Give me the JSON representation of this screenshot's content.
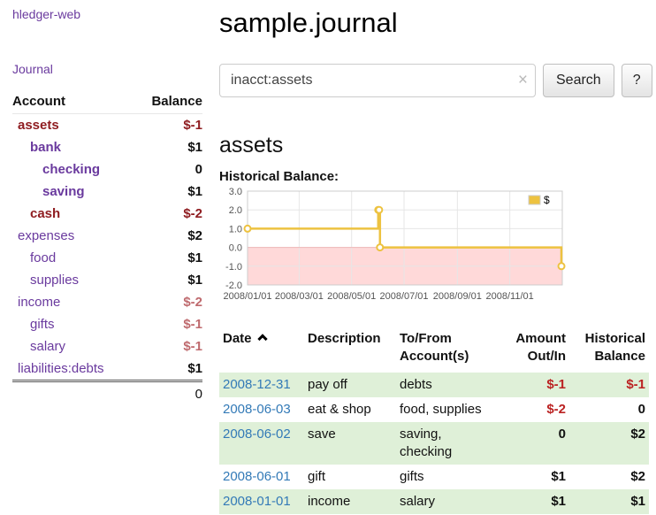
{
  "colors": {
    "link_purple": "#6a3a9e",
    "negative_dark": "#8f1d21",
    "negative_rose": "#bf6a6e",
    "negative_red": "#bb2222",
    "row_green": "#dff0d8",
    "date_blue": "#337ab7",
    "chart_line": "#edc240",
    "negative_region": "#ffd9d9"
  },
  "sidebar": {
    "app_link": "hledger-web",
    "journal_link": "Journal",
    "table": {
      "account_header": "Account",
      "balance_header": "Balance",
      "rows": [
        {
          "name": "assets",
          "balance": "$-1"
        },
        {
          "name": "bank",
          "balance": "$1"
        },
        {
          "name": "checking",
          "balance": "0"
        },
        {
          "name": "saving",
          "balance": "$1"
        },
        {
          "name": "cash",
          "balance": "$-2"
        },
        {
          "name": "expenses",
          "balance": "$2"
        },
        {
          "name": "food",
          "balance": "$1"
        },
        {
          "name": "supplies",
          "balance": "$1"
        },
        {
          "name": "income",
          "balance": "$-2"
        },
        {
          "name": "gifts",
          "balance": "$-1"
        },
        {
          "name": "salary",
          "balance": "$-1"
        },
        {
          "name": "liabilities:debts",
          "balance": "$1"
        }
      ],
      "total": "0"
    }
  },
  "main": {
    "title": "sample.journal",
    "search": {
      "value": "inacct:assets",
      "clear_icon": "×",
      "search_button": "Search",
      "help_button": "?"
    },
    "section_heading": "assets"
  },
  "chart_data": {
    "type": "line",
    "title": "Historical Balance:",
    "legend": [
      {
        "label": "$",
        "color": "#edc240"
      }
    ],
    "legend_position": "top-right",
    "grid": true,
    "line_color": "#edc240",
    "negative_region_fill": "#ffd9d9",
    "x_range": [
      "2008-01-01",
      "2009-01-01"
    ],
    "y_range": [
      -2,
      3
    ],
    "y_ticks": [
      3.0,
      2.0,
      1.0,
      0.0,
      -1.0,
      -2.0
    ],
    "x_ticks": [
      "2008/01/01",
      "2008/03/01",
      "2008/05/01",
      "2008/07/01",
      "2008/09/01",
      "2008/11/01"
    ],
    "series": [
      {
        "name": "$",
        "step": true,
        "points": [
          {
            "date": "2008-01-01",
            "value": 1
          },
          {
            "date": "2008-06-01",
            "value": 2
          },
          {
            "date": "2008-06-02",
            "value": 2
          },
          {
            "date": "2008-06-03",
            "value": 0
          },
          {
            "date": "2008-12-31",
            "value": -1
          }
        ]
      }
    ]
  },
  "journal": {
    "headers": {
      "date": "Date",
      "description": "Description",
      "tofrom": "To/From Account(s)",
      "amount": "Amount Out/In",
      "historical": "Historical Balance"
    },
    "rows": [
      {
        "date": "2008-12-31",
        "description": "pay off",
        "accounts": "debts",
        "amount": "$-1",
        "historical": "$-1"
      },
      {
        "date": "2008-06-03",
        "description": "eat & shop",
        "accounts": "food, supplies",
        "amount": "$-2",
        "historical": "0"
      },
      {
        "date": "2008-06-02",
        "description": "save",
        "accounts": "saving, checking",
        "amount": "0",
        "historical": "$2"
      },
      {
        "date": "2008-06-01",
        "description": "gift",
        "accounts": "gifts",
        "amount": "$1",
        "historical": "$2"
      },
      {
        "date": "2008-01-01",
        "description": "income",
        "accounts": "salary",
        "amount": "$1",
        "historical": "$1"
      }
    ]
  }
}
